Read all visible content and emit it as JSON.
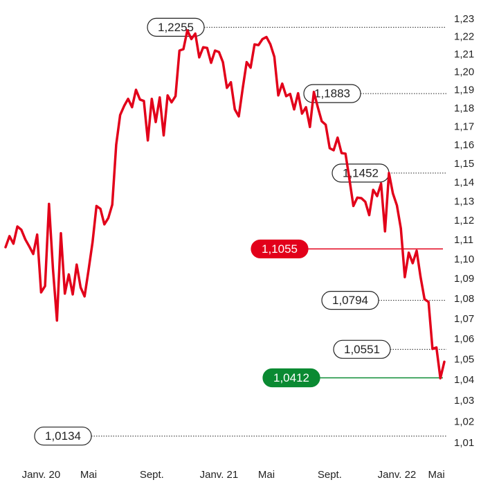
{
  "chart_data": {
    "type": "line",
    "log": true,
    "color": "#e2001a",
    "categories": [
      null,
      null,
      null,
      null,
      null,
      null,
      null,
      null,
      null,
      "Janv. 20",
      null,
      null,
      null,
      null,
      null,
      null,
      null,
      null,
      null,
      null,
      null,
      "Mai",
      null,
      null,
      null,
      null,
      null,
      null,
      null,
      null,
      null,
      null,
      null,
      null,
      null,
      null,
      null,
      "Sept.",
      null,
      null,
      null,
      null,
      null,
      null,
      null,
      null,
      null,
      null,
      null,
      null,
      null,
      null,
      null,
      null,
      "Janv. 21",
      null,
      null,
      null,
      null,
      null,
      null,
      null,
      null,
      null,
      null,
      null,
      "Mai",
      null,
      null,
      null,
      null,
      null,
      null,
      null,
      null,
      null,
      null,
      null,
      null,
      null,
      null,
      null,
      "Sept.",
      null,
      null,
      null,
      null,
      null,
      null,
      null,
      null,
      null,
      null,
      null,
      null,
      null,
      null,
      null,
      null,
      "Janv. 22",
      null,
      null,
      null,
      null,
      null,
      null,
      null,
      null,
      null,
      "Mai",
      null,
      null
    ],
    "values": [
      1.1064,
      1.1121,
      1.1082,
      1.1171,
      1.1154,
      1.1104,
      1.1068,
      1.1029,
      1.1129,
      1.0834,
      1.0866,
      1.1289,
      1.0954,
      1.0693,
      1.1136,
      1.0828,
      1.0925,
      1.0824,
      1.0975,
      1.0859,
      1.0814,
      1.0946,
      1.1089,
      1.1278,
      1.1263,
      1.1182,
      1.1215,
      1.1285,
      1.1604,
      1.1765,
      1.1815,
      1.1854,
      1.1808,
      1.1904,
      1.185,
      1.1842,
      1.1627,
      1.1854,
      1.1727,
      1.1862,
      1.1654,
      1.1873,
      1.1835,
      1.1869,
      1.2123,
      1.2131,
      1.2237,
      1.2188,
      1.2219,
      1.2085,
      1.2142,
      1.2138,
      1.2054,
      1.2123,
      1.2115,
      1.2058,
      1.1915,
      1.1946,
      1.1796,
      1.1758,
      1.1912,
      1.2058,
      1.2027,
      1.2158,
      1.2154,
      1.2188,
      1.22,
      1.2158,
      1.2088,
      1.1873,
      1.1938,
      1.1869,
      1.1881,
      1.1796,
      1.1885,
      1.1773,
      1.1808,
      1.17,
      1.1892,
      1.1808,
      1.1731,
      1.1712,
      1.1585,
      1.1574,
      1.1642,
      1.1559,
      1.1556,
      1.1419,
      1.1278,
      1.1322,
      1.1319,
      1.13,
      1.123,
      1.1363,
      1.133,
      1.1396,
      1.1146,
      1.1452,
      1.1344,
      1.1281,
      1.1161,
      1.0911,
      1.1036,
      1.0982,
      1.1046,
      1.0911,
      1.08,
      1.0786,
      1.0553,
      1.056,
      1.041,
      1.049
    ],
    "ylim": [
      1.01,
      1.23
    ],
    "yticks": [
      {
        "value": 1.23,
        "label": "1,23"
      },
      {
        "value": 1.22,
        "label": "1,22"
      },
      {
        "value": 1.21,
        "label": "1,21"
      },
      {
        "value": 1.2,
        "label": "1,20"
      },
      {
        "value": 1.19,
        "label": "1,19"
      },
      {
        "value": 1.18,
        "label": "1,18"
      },
      {
        "value": 1.17,
        "label": "1,17"
      },
      {
        "value": 1.16,
        "label": "1,16"
      },
      {
        "value": 1.15,
        "label": "1,15"
      },
      {
        "value": 1.14,
        "label": "1,14"
      },
      {
        "value": 1.13,
        "label": "1,13"
      },
      {
        "value": 1.12,
        "label": "1,12"
      },
      {
        "value": 1.11,
        "label": "1,11"
      },
      {
        "value": 1.1,
        "label": "1,10"
      },
      {
        "value": 1.09,
        "label": "1,09"
      },
      {
        "value": 1.08,
        "label": "1,08"
      },
      {
        "value": 1.07,
        "label": "1,07"
      },
      {
        "value": 1.06,
        "label": "1,06"
      },
      {
        "value": 1.05,
        "label": "1,05"
      },
      {
        "value": 1.04,
        "label": "1,04"
      },
      {
        "value": 1.03,
        "label": "1,03"
      },
      {
        "value": 1.02,
        "label": "1,02"
      },
      {
        "value": 1.01,
        "label": "1,01"
      }
    ],
    "annotations": [
      {
        "value": 1.2255,
        "label": "1,2255",
        "style": "dotted",
        "color": "#222222"
      },
      {
        "value": 1.1883,
        "label": "1,1883",
        "style": "dotted",
        "color": "#222222"
      },
      {
        "value": 1.1452,
        "label": "1,1452",
        "style": "dotted",
        "color": "#222222"
      },
      {
        "value": 1.1055,
        "label": "1,1055",
        "style": "solid",
        "color": "#e2001a"
      },
      {
        "value": 1.0794,
        "label": "1,0794",
        "style": "dotted",
        "color": "#222222"
      },
      {
        "value": 1.0551,
        "label": "1,0551",
        "style": "dotted",
        "color": "#222222"
      },
      {
        "value": 1.0412,
        "label": "1,0412",
        "style": "solid",
        "color": "#0a8a32"
      },
      {
        "value": 1.0134,
        "label": "1,0134",
        "style": "dotted",
        "color": "#222222"
      }
    ]
  }
}
